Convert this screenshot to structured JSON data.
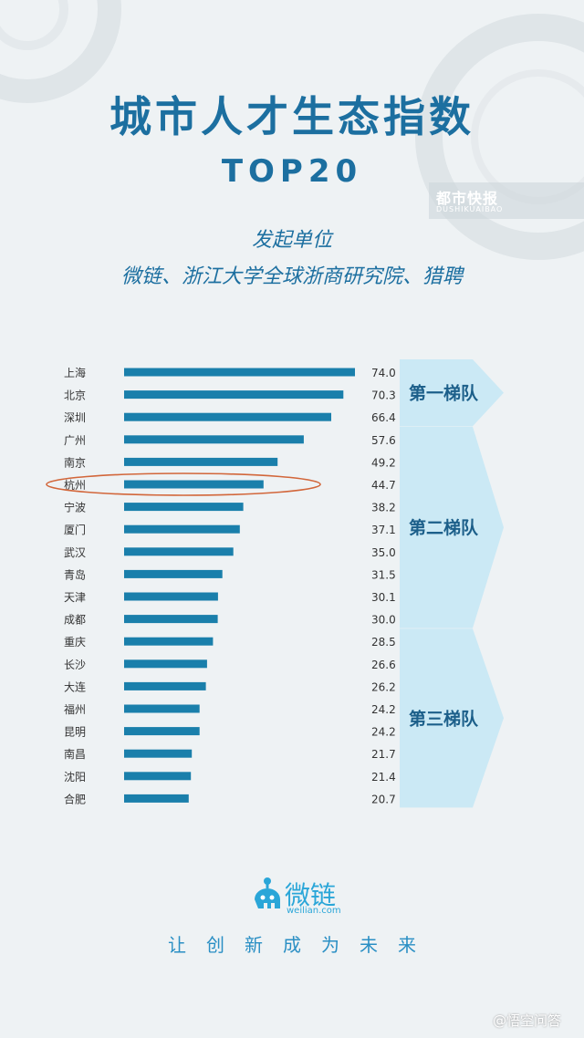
{
  "header": {
    "title": "城市人才生态指数",
    "subtitle": "TOP20",
    "sponsor_label": "发起单位",
    "sponsor_names": "微链、浙江大学全球浙商研究院、猎聘"
  },
  "watermark": {
    "top_right": "都市快报",
    "top_right_sub": "DUSHIKUAIBAO",
    "bottom_right": "@悟空问答"
  },
  "chart_data": {
    "type": "bar",
    "orientation": "horizontal",
    "categories": [
      "上海",
      "北京",
      "深圳",
      "广州",
      "南京",
      "杭州",
      "宁波",
      "厦门",
      "武汉",
      "青岛",
      "天津",
      "成都",
      "重庆",
      "长沙",
      "大连",
      "福州",
      "昆明",
      "南昌",
      "沈阳",
      "合肥"
    ],
    "values": [
      74.0,
      70.3,
      66.4,
      57.6,
      49.2,
      44.7,
      38.2,
      37.1,
      35.0,
      31.5,
      30.1,
      30.0,
      28.5,
      26.6,
      26.2,
      24.2,
      24.2,
      21.7,
      21.4,
      20.7
    ],
    "value_labels": [
      "74.0",
      "70.3",
      "66.4",
      "57.6",
      "49.2",
      "44.7",
      "38.2",
      "37.1",
      "35.0",
      "31.5",
      "30.1",
      "30.0",
      "28.5",
      "26.6",
      "26.2",
      "24.2",
      "24.2",
      "21.7",
      "21.4",
      "20.7"
    ],
    "highlighted_category": "杭州",
    "bar_color": "#1a7fab",
    "tiers": [
      {
        "label": "第一梯队",
        "from": 0,
        "to": 2
      },
      {
        "label": "第二梯队",
        "from": 3,
        "to": 11
      },
      {
        "label": "第三梯队",
        "from": 12,
        "to": 19
      }
    ],
    "tier_color": "#cbe9f5",
    "highlight_color": "#d2663a"
  },
  "brand": {
    "name": "微链",
    "url": "weilian.com",
    "slogan": "让创新成为未来"
  }
}
